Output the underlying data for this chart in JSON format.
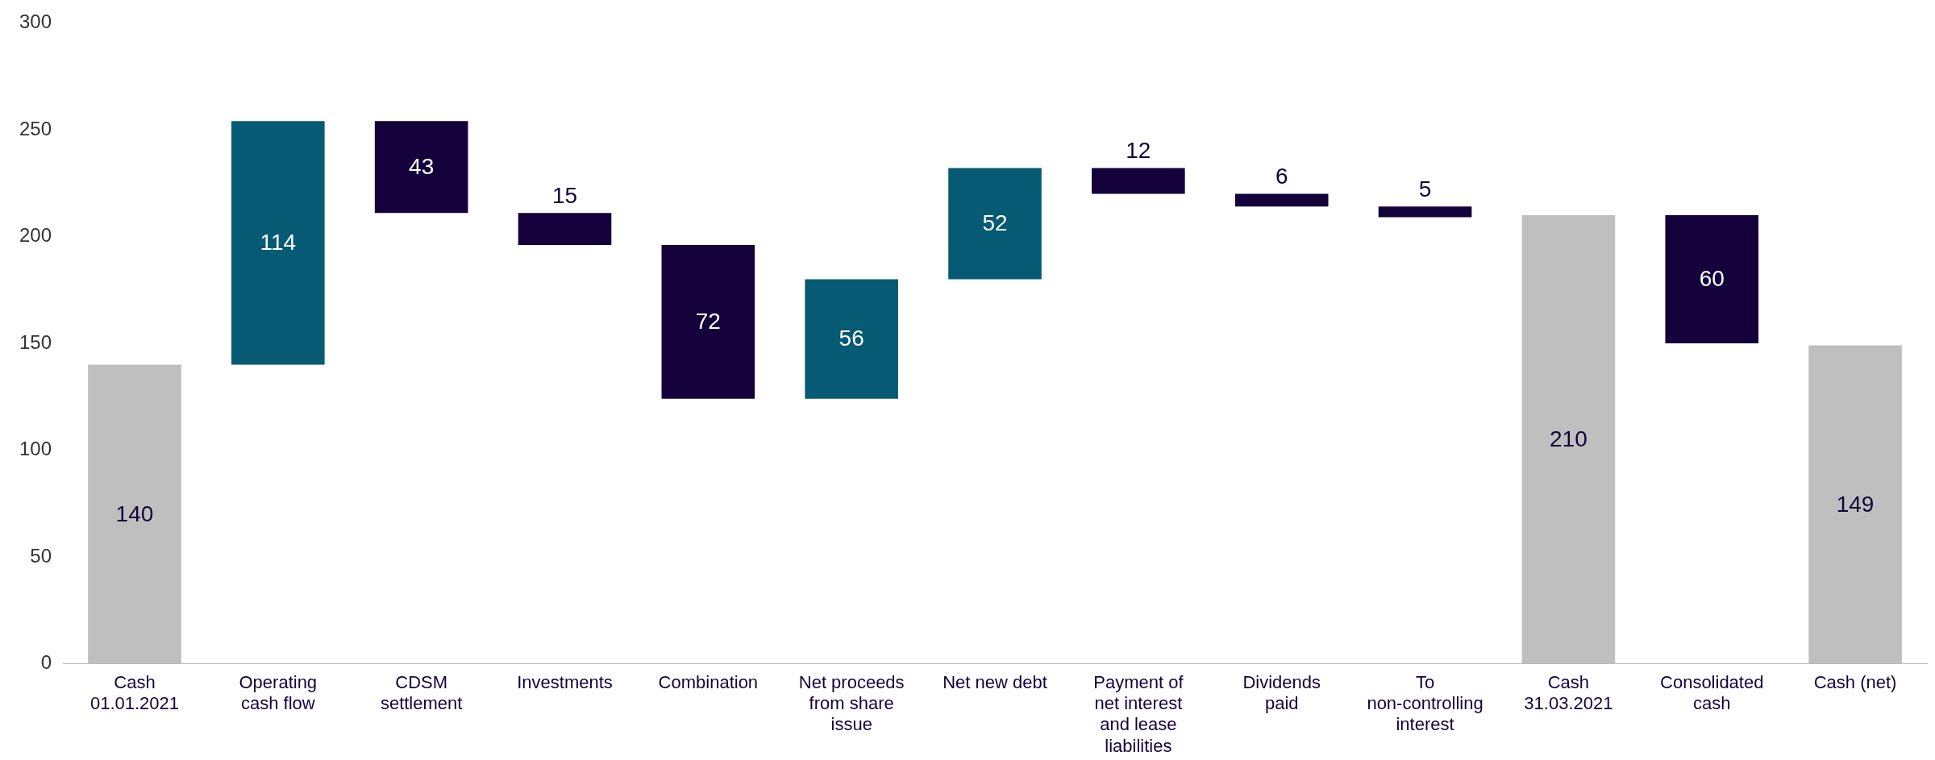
{
  "chart_data": {
    "type": "bar",
    "categories": [
      "Cash 01.01.2021",
      "Operating cash flow",
      "CDSM settlement",
      "Investments",
      "Combination",
      "Net proceeds from share issue",
      "Net new debt",
      "Payment of net interest and lease liabilities",
      "Dividends paid",
      "To non-controlling interest",
      "Cash 31.03.2021",
      "Consolidated cash",
      "Cash (net)"
    ],
    "values": [
      140,
      114,
      43,
      15,
      72,
      56,
      52,
      12,
      6,
      5,
      210,
      60,
      149
    ],
    "base": [
      0,
      140,
      211,
      196,
      124,
      124,
      180,
      220,
      214,
      209,
      0,
      150,
      0
    ],
    "colors": [
      "#bfbfbf",
      "#065a73",
      "#14003a",
      "#14003a",
      "#14003a",
      "#065a73",
      "#065a73",
      "#14003a",
      "#14003a",
      "#14003a",
      "#bfbfbf",
      "#14003a",
      "#bfbfbf"
    ],
    "ylim": [
      0,
      300
    ],
    "yticks": [
      0,
      50,
      100,
      150,
      200,
      250,
      300
    ],
    "data_labels": true,
    "grid": false,
    "legend": false
  }
}
